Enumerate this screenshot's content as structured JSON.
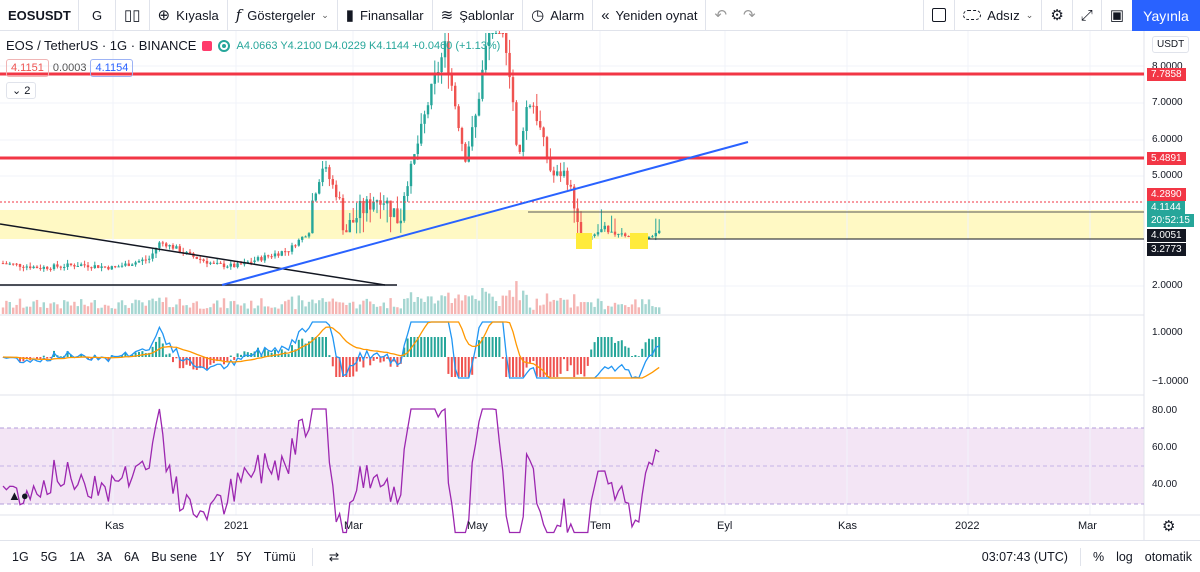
{
  "toolbar": {
    "symbol": "EOSUSDT",
    "interval": "G",
    "compare": "Kıyasla",
    "indicators": "Göstergeler",
    "financials": "Finansallar",
    "templates": "Şablonlar",
    "alert": "Alarm",
    "replay": "Yeniden oynat",
    "layout_name": "Adsız",
    "publish": "Yayınla"
  },
  "legend": {
    "title": "EOS / TetherUS · 1G · BINANCE",
    "ohlc": "A4.0663 Y4.2100 D4.0229 K4.1144 +0.0460 (+1.13%)",
    "sell_price": "4.1151",
    "spread": "0.0003",
    "buy_price": "4.1154",
    "collapse_count": "2"
  },
  "price_scale": {
    "currency": "USDT",
    "labels": [
      "8.0000",
      "7.0000",
      "6.0000",
      "5.0000",
      "2.0000"
    ],
    "macd_labels": [
      "1.0000",
      "−1.0000"
    ],
    "rsi_labels": [
      "80.00",
      "60.00",
      "40.00"
    ],
    "tags": {
      "resistance_high": "7.7858",
      "resistance_mid": "5.4891",
      "dotted_level": "4.2890",
      "last_price": "4.1144",
      "countdown": "20:52:15",
      "support_1": "4.0051",
      "support_2": "3.2773"
    }
  },
  "time_axis": [
    "Kas",
    "2021",
    "Mar",
    "May",
    "Tem",
    "Eyl",
    "Kas",
    "2022",
    "Mar"
  ],
  "bottombar": {
    "ranges": [
      "1G",
      "5G",
      "1A",
      "3A",
      "6A",
      "Bu sene",
      "1Y",
      "5Y",
      "Tümü"
    ],
    "clock": "03:07:43 (UTC)",
    "percent": "%",
    "log": "log",
    "auto": "otomatik"
  },
  "colors": {
    "up": "#26a69a",
    "down": "#ef5350",
    "accent": "#2962ff",
    "resistance": "#f23645",
    "zone": "#fff9c4",
    "rsi": "#9c27b0"
  }
}
